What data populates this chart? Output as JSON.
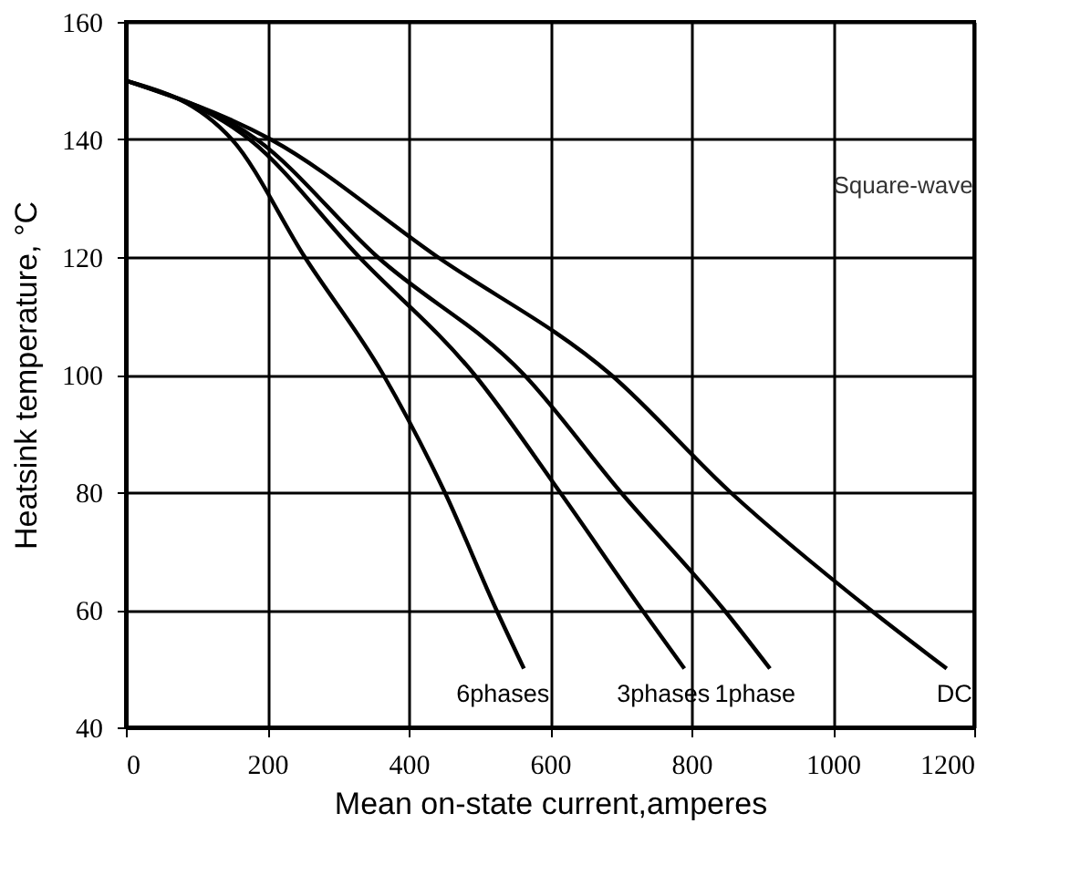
{
  "chart_data": {
    "type": "line",
    "xlabel": "Mean on-state current,amperes",
    "ylabel": "Heatsink temperature, °C",
    "xlim": [
      0,
      1200
    ],
    "ylim": [
      40,
      160
    ],
    "xticks": [
      0,
      200,
      400,
      600,
      800,
      1000,
      1200
    ],
    "yticks": [
      40,
      60,
      80,
      100,
      120,
      140,
      160
    ],
    "grid": true,
    "annotations": [
      "Square-wave"
    ],
    "series": [
      {
        "name": "6phases",
        "color": "#000000",
        "x": [
          0,
          150,
          253,
          364,
          451,
          524,
          563
        ],
        "values": [
          150,
          140,
          120,
          100,
          80,
          60,
          50
        ]
      },
      {
        "name": "3phases",
        "color": "#000000",
        "x": [
          0,
          175,
          330,
          493,
          614,
          730,
          790
        ],
        "values": [
          150,
          140,
          120,
          100,
          80,
          60,
          50
        ]
      },
      {
        "name": "1phase",
        "color": "#000000",
        "x": [
          0,
          185,
          356,
          563,
          700,
          846,
          911
        ],
        "values": [
          150,
          140,
          120,
          100,
          80,
          60,
          50
        ]
      },
      {
        "name": "DC",
        "color": "#000000",
        "x": [
          0,
          205,
          441,
          686,
          855,
          1053,
          1161
        ],
        "values": [
          150,
          140,
          120,
          100,
          80,
          60,
          50
        ]
      }
    ]
  }
}
